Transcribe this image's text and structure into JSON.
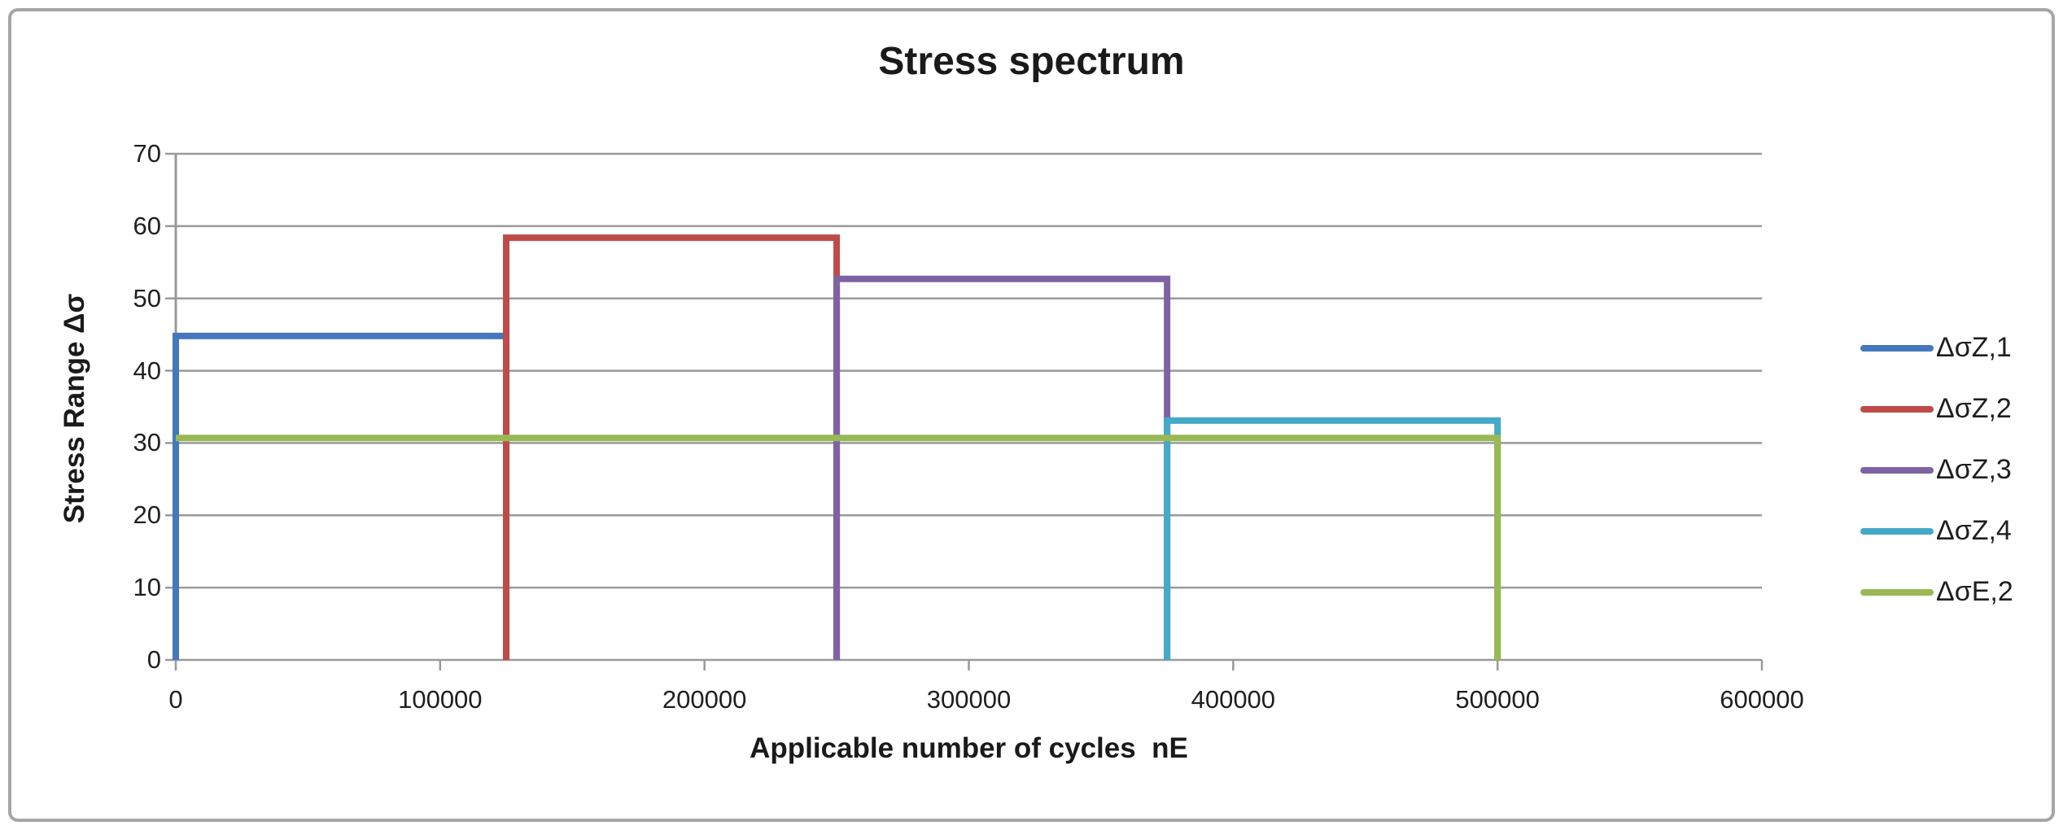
{
  "chart_data": {
    "type": "line",
    "subtype": "step",
    "title": "Stress spectrum",
    "xlabel": "Applicable number of cycles  nE",
    "ylabel": "Stress Range Δσ",
    "xlim": [
      0,
      600000
    ],
    "ylim": [
      0,
      70
    ],
    "xticks": [
      0,
      100000,
      200000,
      300000,
      400000,
      500000,
      600000
    ],
    "yticks": [
      0,
      10,
      20,
      30,
      40,
      50,
      60,
      70
    ],
    "grid": "horizontal",
    "legend_position": "right",
    "series": [
      {
        "name": "ΔσZ,1",
        "color": "#4577BD",
        "stress_range": 44.8,
        "cycles_start": 0,
        "cycles_end": 125000,
        "points": [
          [
            0,
            0
          ],
          [
            0,
            44.8
          ],
          [
            125000,
            44.8
          ],
          [
            125000,
            0
          ]
        ]
      },
      {
        "name": "ΔσZ,2",
        "color": "#BE4B48",
        "stress_range": 58.4,
        "cycles_start": 125000,
        "cycles_end": 250000,
        "points": [
          [
            125000,
            0
          ],
          [
            125000,
            58.4
          ],
          [
            250000,
            58.4
          ],
          [
            250000,
            0
          ]
        ]
      },
      {
        "name": "ΔσZ,3",
        "color": "#7E63A3",
        "stress_range": 52.7,
        "cycles_start": 250000,
        "cycles_end": 375000,
        "points": [
          [
            250000,
            0
          ],
          [
            250000,
            52.7
          ],
          [
            375000,
            52.7
          ],
          [
            375000,
            0
          ]
        ]
      },
      {
        "name": "ΔσZ,4",
        "color": "#45A9C8",
        "stress_range": 33.1,
        "cycles_start": 375000,
        "cycles_end": 500000,
        "points": [
          [
            375000,
            0
          ],
          [
            375000,
            33.1
          ],
          [
            500000,
            33.1
          ],
          [
            500000,
            0
          ]
        ]
      },
      {
        "name": "ΔσE,2",
        "color": "#98B954",
        "stress_range": 30.7,
        "cycles_start": 0,
        "cycles_end": 500000,
        "points": [
          [
            0,
            30.7
          ],
          [
            500000,
            30.7
          ],
          [
            500000,
            0
          ]
        ]
      }
    ]
  },
  "style_colors": {
    "gridline": "#9A9A9A",
    "axis_line": "#9A9A9A",
    "frame_border": "#A6A6A6",
    "text": "#1F1F1F"
  }
}
